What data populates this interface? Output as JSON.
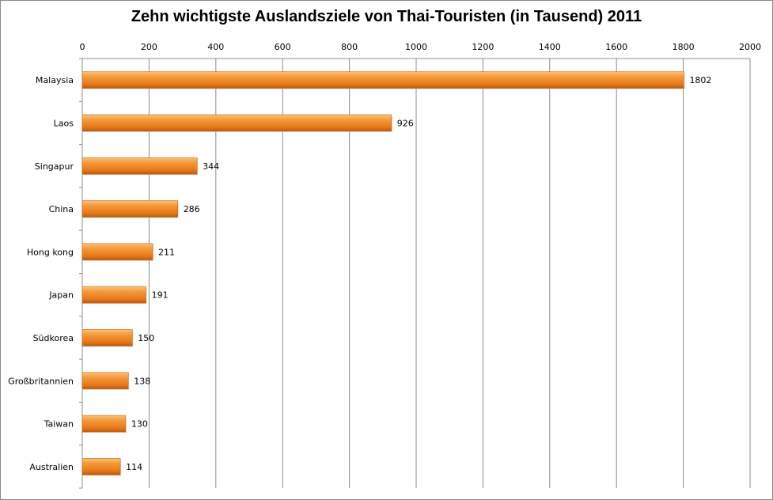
{
  "chart_data": {
    "type": "bar",
    "orientation": "horizontal",
    "title": "Zehn wichtigste Auslandsziele von Thai-Touristen (in Tausend) 2011",
    "categories": [
      "Malaysia",
      "Laos",
      "Singapur",
      "China",
      "Hong kong",
      "Japan",
      "Südkorea",
      "Großbritannien",
      "Taiwan",
      "Australien"
    ],
    "values": [
      1802,
      926,
      344,
      286,
      211,
      191,
      150,
      138,
      130,
      114
    ],
    "xlim": [
      0,
      2000
    ],
    "xticks": [
      0,
      200,
      400,
      600,
      800,
      1000,
      1200,
      1400,
      1600,
      1800,
      2000
    ],
    "xaxis_position": "top",
    "grid": true,
    "legend": "none",
    "bar_color": "#f0821e",
    "xlabel": "",
    "ylabel": ""
  }
}
